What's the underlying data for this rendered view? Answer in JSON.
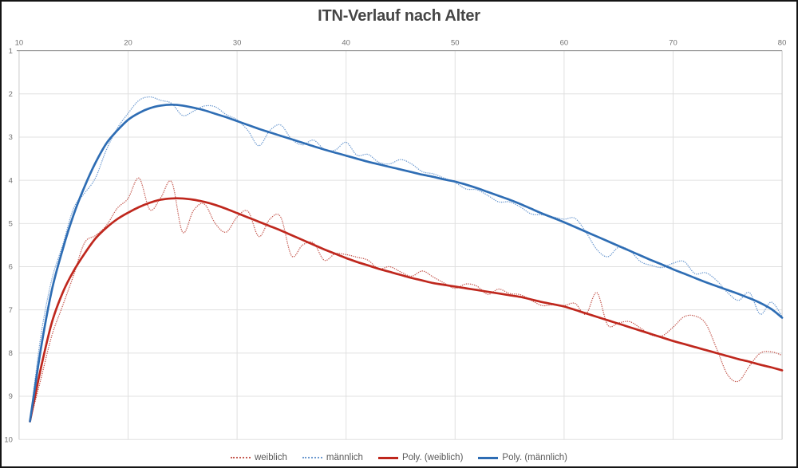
{
  "title": "ITN-Verlauf nach Alter",
  "colors": {
    "background": "#ffffff",
    "frame_border": "#141414",
    "gridline": "#e0e0e0",
    "plot_border": "#c9c9c9",
    "axis_line": "#8f8f8f",
    "title_text": "#454545",
    "tick_text": "#717171",
    "legend_text": "#595959"
  },
  "chart_data": {
    "type": "line",
    "title": "ITN-Verlauf nach Alter",
    "xlabel": "",
    "ylabel": "",
    "grid": true,
    "legend_position": "bottom",
    "x_axis": {
      "min": 10,
      "max": 80,
      "position": "top",
      "ticks": [
        10,
        20,
        30,
        40,
        50,
        60,
        70,
        80
      ]
    },
    "y_axis": {
      "min": 1,
      "max": 10,
      "inverted": true,
      "ticks": [
        1,
        2,
        3,
        4,
        5,
        6,
        7,
        8,
        9,
        10
      ]
    },
    "ages": [
      11,
      12,
      13,
      14,
      15,
      16,
      17,
      18,
      19,
      20,
      21,
      22,
      23,
      24,
      25,
      26,
      27,
      28,
      29,
      30,
      31,
      32,
      33,
      34,
      35,
      36,
      37,
      38,
      39,
      40,
      41,
      42,
      43,
      44,
      45,
      46,
      47,
      48,
      49,
      50,
      51,
      52,
      53,
      54,
      55,
      56,
      57,
      58,
      59,
      60,
      61,
      62,
      63,
      64,
      65,
      66,
      67,
      68,
      69,
      70,
      71,
      72,
      73,
      74,
      75,
      76,
      77,
      78,
      79,
      80
    ],
    "series": [
      {
        "name": "weiblich",
        "slug": "weiblich",
        "line_style": "dotted",
        "color": "#c55b52",
        "values": [
          9.58,
          8.6,
          7.6,
          6.9,
          6.2,
          5.45,
          5.28,
          5.05,
          4.65,
          4.42,
          3.95,
          4.68,
          4.4,
          4.04,
          5.2,
          4.7,
          4.55,
          5.0,
          5.2,
          4.85,
          4.72,
          5.3,
          4.9,
          4.85,
          5.75,
          5.5,
          5.45,
          5.85,
          5.7,
          5.72,
          5.78,
          5.85,
          6.05,
          6.0,
          6.12,
          6.22,
          6.1,
          6.24,
          6.38,
          6.5,
          6.4,
          6.45,
          6.64,
          6.52,
          6.62,
          6.65,
          6.78,
          6.9,
          6.88,
          6.9,
          6.85,
          7.1,
          6.6,
          7.35,
          7.3,
          7.27,
          7.42,
          7.58,
          7.6,
          7.4,
          7.16,
          7.14,
          7.32,
          7.9,
          8.5,
          8.65,
          8.3,
          8.0,
          7.97,
          8.05
        ]
      },
      {
        "name": "männlich",
        "slug": "maennlich",
        "line_style": "dotted",
        "color": "#6d9ad0",
        "values": [
          9.58,
          7.6,
          6.3,
          5.5,
          4.65,
          4.3,
          3.95,
          3.3,
          2.8,
          2.45,
          2.15,
          2.07,
          2.15,
          2.22,
          2.5,
          2.4,
          2.28,
          2.3,
          2.48,
          2.6,
          2.85,
          3.2,
          2.85,
          2.72,
          3.05,
          3.18,
          3.07,
          3.28,
          3.3,
          3.12,
          3.42,
          3.4,
          3.58,
          3.62,
          3.52,
          3.62,
          3.8,
          3.85,
          3.95,
          4.05,
          4.2,
          4.22,
          4.35,
          4.5,
          4.5,
          4.62,
          4.78,
          4.8,
          4.85,
          4.9,
          4.88,
          5.2,
          5.6,
          5.77,
          5.55,
          5.62,
          5.88,
          5.97,
          6.02,
          5.92,
          5.88,
          6.16,
          6.14,
          6.32,
          6.6,
          6.78,
          6.6,
          7.1,
          6.82,
          7.15
        ]
      },
      {
        "name": "Poly. (weiblich)",
        "slug": "poly-weiblich",
        "line_style": "solid",
        "color": "#bf271d",
        "values": [
          9.58,
          8.35,
          7.3,
          6.6,
          6.1,
          5.7,
          5.35,
          5.1,
          4.9,
          4.75,
          4.62,
          4.52,
          4.45,
          4.42,
          4.42,
          4.45,
          4.5,
          4.57,
          4.66,
          4.76,
          4.86,
          4.96,
          5.06,
          5.16,
          5.27,
          5.38,
          5.49,
          5.6,
          5.7,
          5.8,
          5.89,
          5.97,
          6.05,
          6.12,
          6.19,
          6.26,
          6.32,
          6.38,
          6.42,
          6.46,
          6.5,
          6.54,
          6.58,
          6.62,
          6.66,
          6.7,
          6.76,
          6.82,
          6.87,
          6.92,
          7.0,
          7.08,
          7.16,
          7.24,
          7.32,
          7.4,
          7.48,
          7.56,
          7.64,
          7.72,
          7.79,
          7.86,
          7.93,
          8.0,
          8.07,
          8.14,
          8.2,
          8.27,
          8.33,
          8.4
        ]
      },
      {
        "name": "Poly. (männlich)",
        "slug": "poly-maennlich",
        "line_style": "solid",
        "color": "#2e6db4",
        "values": [
          9.58,
          7.9,
          6.55,
          5.6,
          4.8,
          4.15,
          3.6,
          3.15,
          2.85,
          2.6,
          2.44,
          2.33,
          2.27,
          2.25,
          2.27,
          2.32,
          2.38,
          2.46,
          2.54,
          2.63,
          2.72,
          2.81,
          2.89,
          2.97,
          3.05,
          3.13,
          3.21,
          3.29,
          3.36,
          3.43,
          3.5,
          3.57,
          3.63,
          3.69,
          3.75,
          3.81,
          3.87,
          3.92,
          3.98,
          4.03,
          4.1,
          4.18,
          4.27,
          4.36,
          4.45,
          4.55,
          4.66,
          4.77,
          4.87,
          4.97,
          5.08,
          5.19,
          5.3,
          5.41,
          5.52,
          5.63,
          5.74,
          5.85,
          5.95,
          6.06,
          6.16,
          6.26,
          6.36,
          6.45,
          6.54,
          6.63,
          6.73,
          6.84,
          6.98,
          7.18
        ]
      }
    ]
  }
}
